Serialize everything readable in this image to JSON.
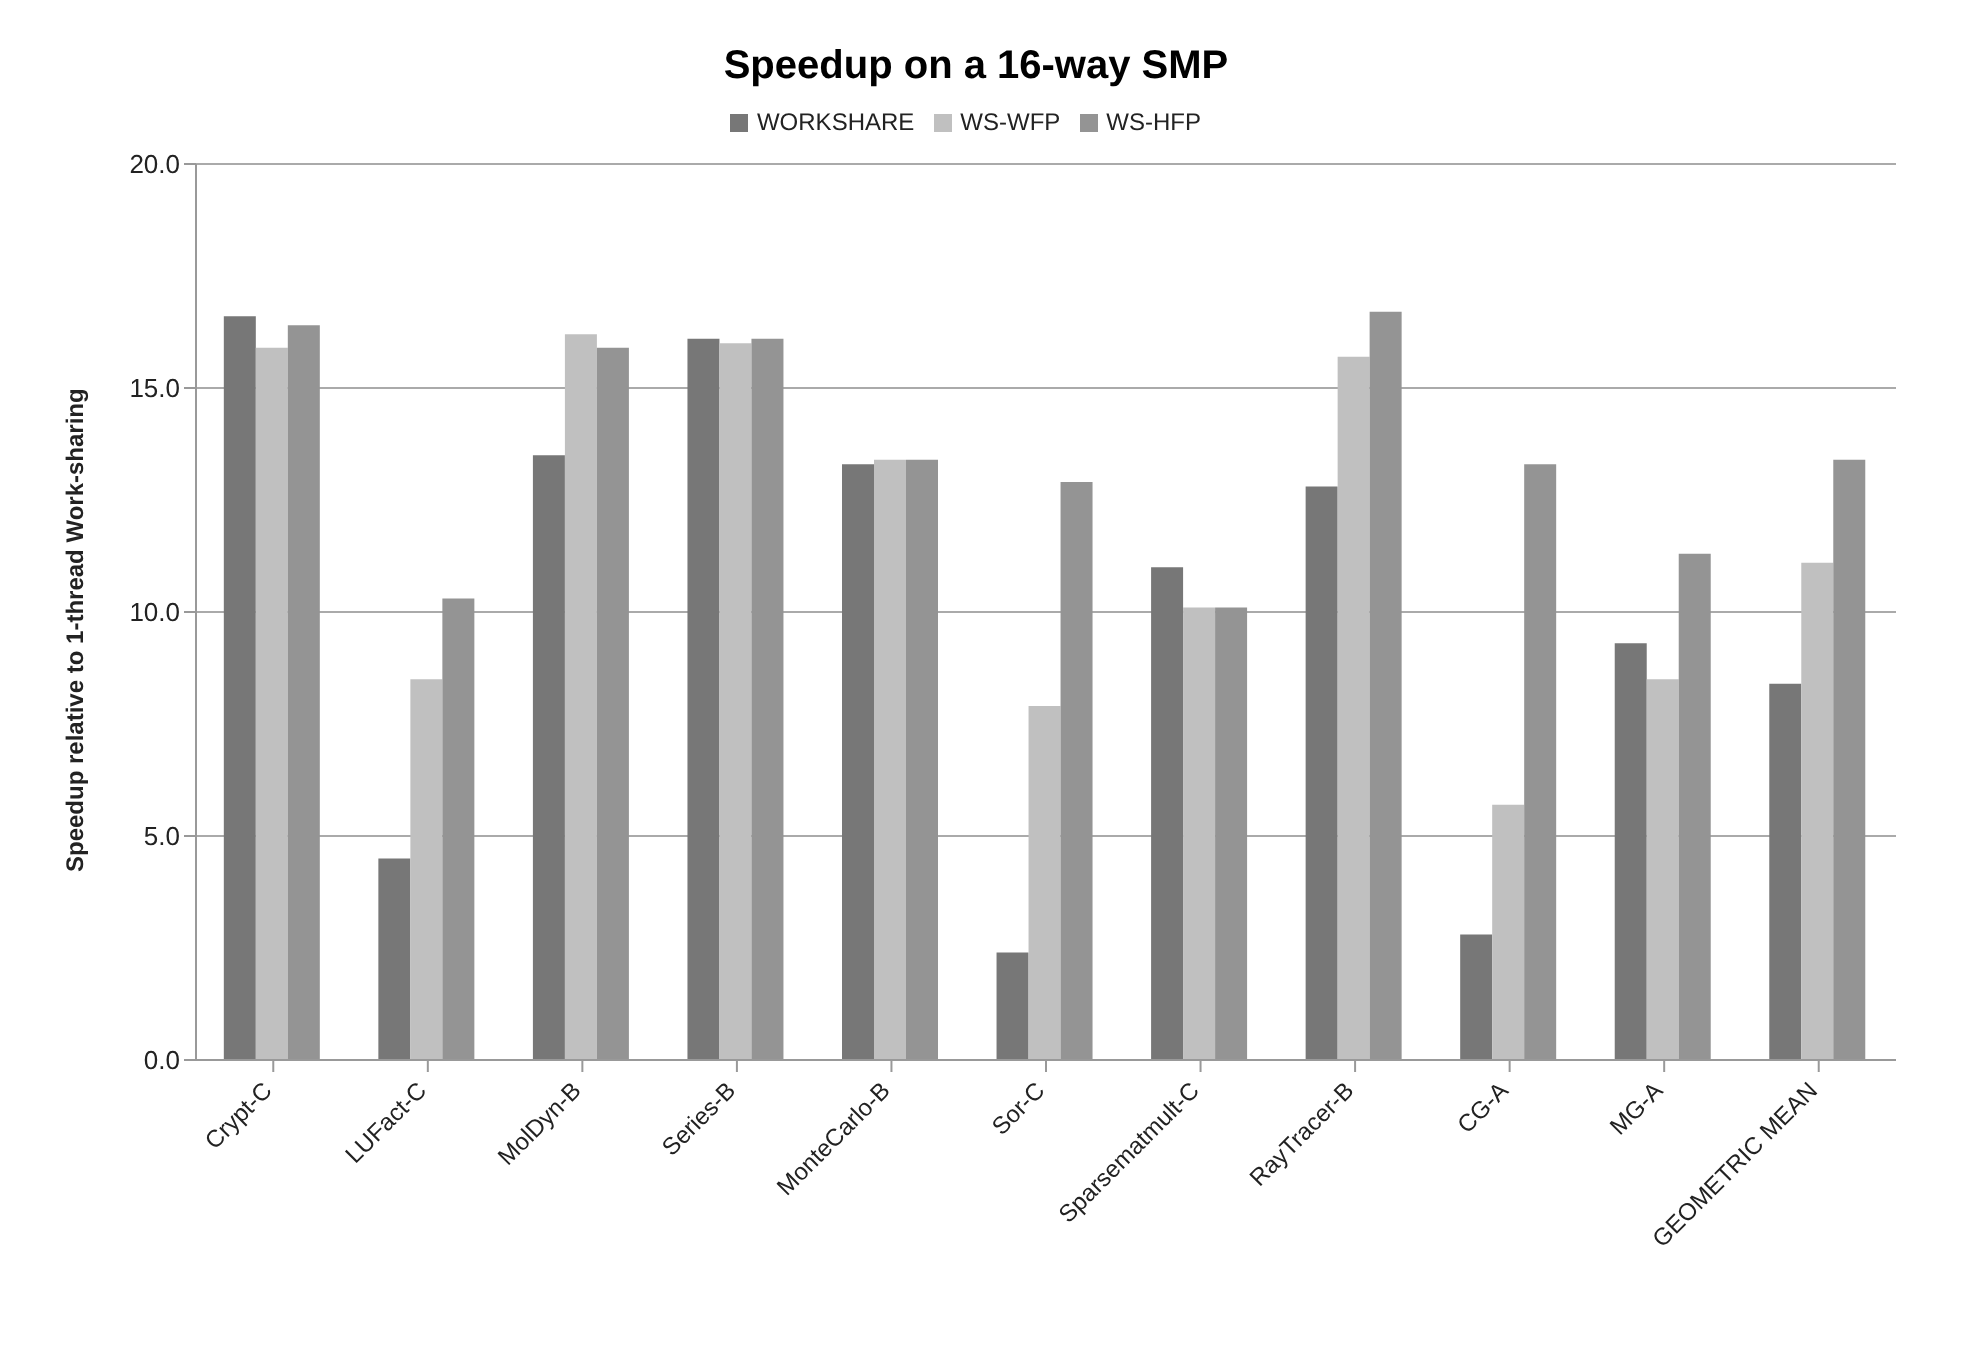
{
  "chart_data": {
    "type": "bar",
    "title": "Speedup on a 16-way SMP",
    "ylabel": "Speedup relative to 1-thread Work-sharing",
    "categories": [
      "Crypt-C",
      "LUFact-C",
      "MolDyn-B",
      "Series-B",
      "MonteCarlo-B",
      "Sor-C",
      "Sparsematmult-C",
      "RayTracer-B",
      "CG-A",
      "MG-A",
      "GEOMETRIC MEAN"
    ],
    "series": [
      {
        "name": "WORKSHARE",
        "color": "#777777",
        "values": [
          16.6,
          4.5,
          13.5,
          16.1,
          13.3,
          2.4,
          11.0,
          12.8,
          2.8,
          9.3,
          8.4
        ]
      },
      {
        "name": "WS-WFP",
        "color": "#c0c0c0",
        "values": [
          15.9,
          8.5,
          16.2,
          16.0,
          13.4,
          7.9,
          10.1,
          15.7,
          5.7,
          8.5,
          11.1
        ]
      },
      {
        "name": "WS-HFP",
        "color": "#949494",
        "values": [
          16.4,
          10.3,
          15.9,
          16.1,
          13.4,
          12.9,
          10.1,
          16.7,
          13.3,
          11.3,
          13.4
        ]
      }
    ],
    "ylim": [
      0,
      20
    ],
    "yticks": [
      {
        "value": 0,
        "label": "0.0"
      },
      {
        "value": 5,
        "label": "5.0"
      },
      {
        "value": 10,
        "label": "10.0"
      },
      {
        "value": 15,
        "label": "15.0"
      },
      {
        "value": 20,
        "label": "20.0"
      }
    ],
    "grid": "y",
    "legend": "top"
  }
}
